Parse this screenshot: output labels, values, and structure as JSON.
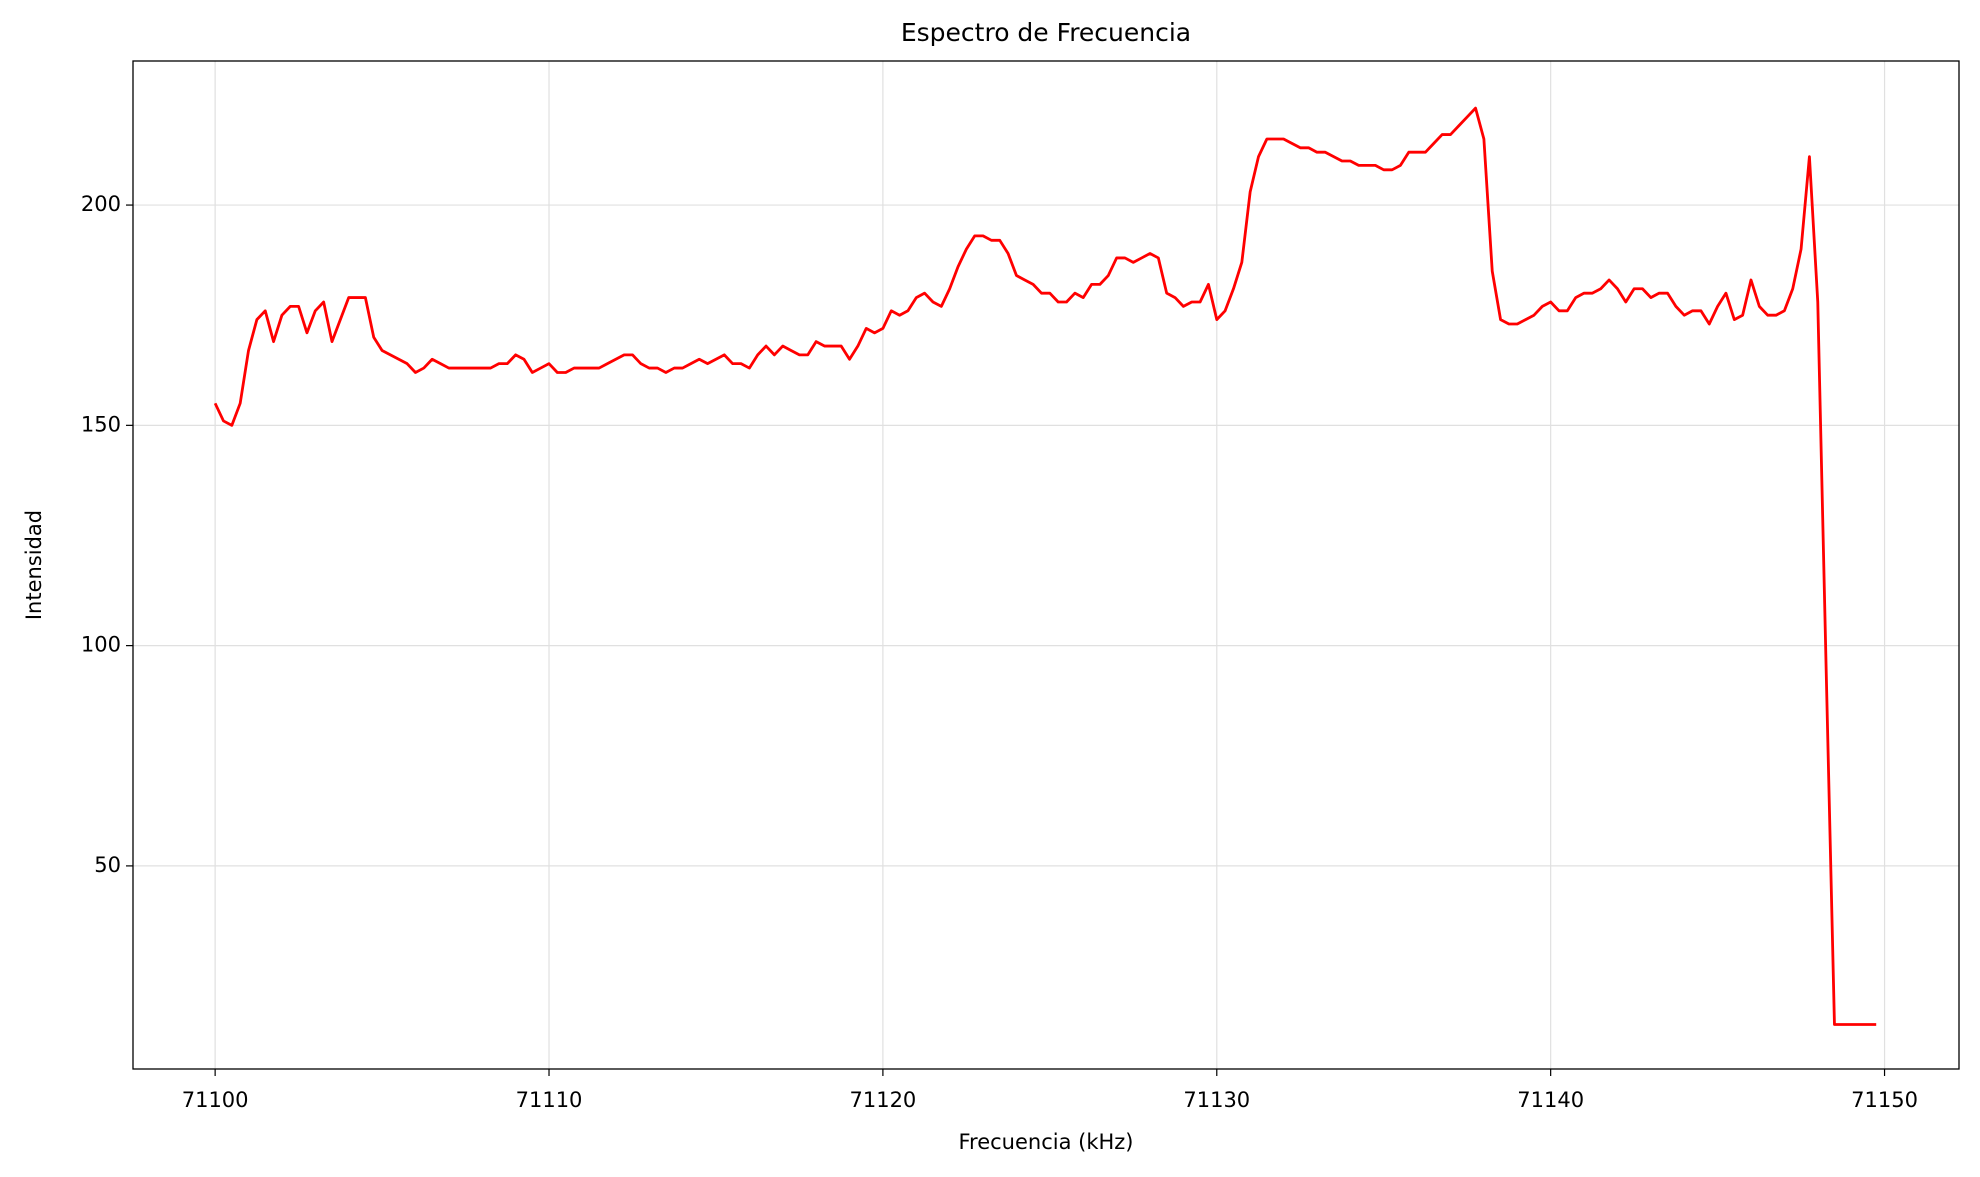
{
  "chart_data": {
    "type": "line",
    "title": "Espectro de Frecuencia",
    "x_label": "Frecuencia (kHz)",
    "y_label": "Intensidad",
    "x": [
      71100,
      71100.25,
      71100.5,
      71100.75,
      71101,
      71101.25,
      71101.5,
      71101.75,
      71102,
      71102.25,
      71102.5,
      71102.75,
      71103,
      71103.25,
      71103.5,
      71103.75,
      71104,
      71104.25,
      71104.5,
      71104.75,
      71105,
      71105.25,
      71105.5,
      71105.75,
      71106,
      71106.25,
      71106.5,
      71106.75,
      71107,
      71107.25,
      71107.5,
      71107.75,
      71108,
      71108.25,
      71108.5,
      71108.75,
      71109,
      71109.25,
      71109.5,
      71109.75,
      71110,
      71110.25,
      71110.5,
      71110.75,
      71111,
      71111.25,
      71111.5,
      71111.75,
      71112,
      71112.25,
      71112.5,
      71112.75,
      71113,
      71113.25,
      71113.5,
      71113.75,
      71114,
      71114.25,
      71114.5,
      71114.75,
      71115,
      71115.25,
      71115.5,
      71115.75,
      71116,
      71116.25,
      71116.5,
      71116.75,
      71117,
      71117.25,
      71117.5,
      71117.75,
      71118,
      71118.25,
      71118.5,
      71118.75,
      71119,
      71119.25,
      71119.5,
      71119.75,
      71120,
      71120.25,
      71120.5,
      71120.75,
      71121,
      71121.25,
      71121.5,
      71121.75,
      71122,
      71122.25,
      71122.5,
      71122.75,
      71123,
      71123.25,
      71123.5,
      71123.75,
      71124,
      71124.25,
      71124.5,
      71124.75,
      71125,
      71125.25,
      71125.5,
      71125.75,
      71126,
      71126.25,
      71126.5,
      71126.75,
      71127,
      71127.25,
      71127.5,
      71127.75,
      71128,
      71128.25,
      71128.5,
      71128.75,
      71129,
      71129.25,
      71129.5,
      71129.75,
      71130,
      71130.25,
      71130.5,
      71130.75,
      71131,
      71131.25,
      71131.5,
      71131.75,
      71132,
      71132.25,
      71132.5,
      71132.75,
      71133,
      71133.25,
      71133.5,
      71133.75,
      71134,
      71134.25,
      71134.5,
      71134.75,
      71135,
      71135.25,
      71135.5,
      71135.75,
      71136,
      71136.25,
      71136.5,
      71136.75,
      71137,
      71137.25,
      71137.5,
      71137.75,
      71138,
      71138.25,
      71138.5,
      71138.75,
      71139,
      71139.25,
      71139.5,
      71139.75,
      71140,
      71140.25,
      71140.5,
      71140.75,
      71141,
      71141.25,
      71141.5,
      71141.75,
      71142,
      71142.25,
      71142.5,
      71142.75,
      71143,
      71143.25,
      71143.5,
      71143.75,
      71144,
      71144.25,
      71144.5,
      71144.75,
      71145,
      71145.25,
      71145.5,
      71145.75,
      71146,
      71146.25,
      71146.5,
      71146.75,
      71147,
      71147.25,
      71147.5,
      71147.75,
      71148,
      71148.25,
      71148.5,
      71148.75,
      71149,
      71149.25,
      71149.5,
      71149.75
    ],
    "series": [
      {
        "color": "#ff0000",
        "values": [
          155,
          151,
          150,
          155,
          167,
          174,
          176,
          169,
          175,
          177,
          177,
          171,
          176,
          178,
          169,
          174,
          179,
          179,
          179,
          170,
          167,
          166,
          165,
          164,
          162,
          163,
          165,
          164,
          163,
          163,
          163,
          163,
          163,
          163,
          164,
          164,
          166,
          165,
          162,
          163,
          164,
          162,
          162,
          163,
          163,
          163,
          163,
          164,
          165,
          166,
          166,
          164,
          163,
          163,
          162,
          163,
          163,
          164,
          165,
          164,
          165,
          166,
          164,
          164,
          163,
          166,
          168,
          166,
          168,
          167,
          166,
          166,
          169,
          168,
          168,
          168,
          165,
          168,
          172,
          171,
          172,
          176,
          175,
          176,
          179,
          180,
          178,
          177,
          181,
          186,
          190,
          193,
          193,
          192,
          192,
          189,
          184,
          183,
          182,
          180,
          180,
          178,
          178,
          180,
          179,
          182,
          182,
          184,
          188,
          188,
          187,
          188,
          189,
          188,
          180,
          179,
          177,
          178,
          178,
          182,
          174,
          176,
          181,
          187,
          203,
          211,
          215,
          215,
          215,
          214,
          213,
          213,
          212,
          212,
          211,
          210,
          210,
          209,
          209,
          209,
          208,
          208,
          209,
          212,
          212,
          212,
          214,
          216,
          216,
          218,
          220,
          222,
          215,
          185,
          174,
          173,
          173,
          174,
          175,
          177,
          178,
          176,
          176,
          179,
          180,
          180,
          181,
          183,
          181,
          178,
          181,
          181,
          179,
          180,
          180,
          177,
          175,
          176,
          176,
          173,
          177,
          180,
          174,
          175,
          183,
          177,
          175,
          175,
          176,
          181,
          190,
          211,
          178,
          95,
          14,
          14,
          14,
          14,
          14,
          14
        ]
      }
    ],
    "xlim": [
      71097.54,
      71152.23
    ],
    "ylim": [
      3.9,
      232.7
    ],
    "xticks": [
      71100,
      71110,
      71120,
      71130,
      71140,
      71150
    ],
    "yticks": [
      50,
      100,
      150,
      200
    ],
    "grid": true
  }
}
